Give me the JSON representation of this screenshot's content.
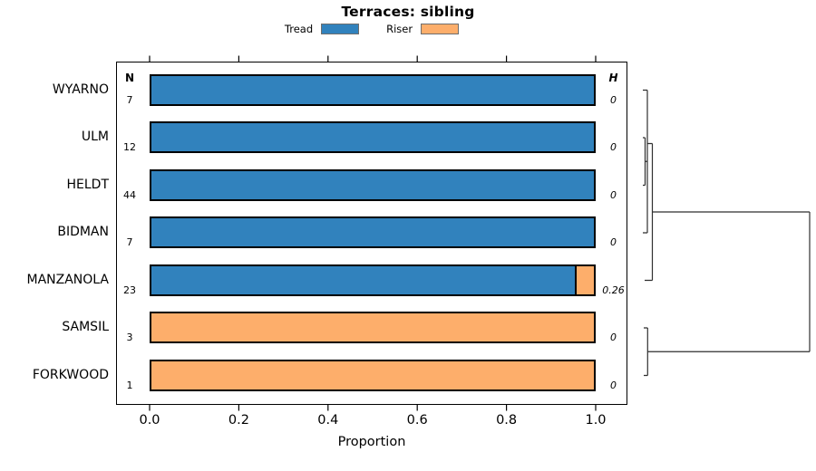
{
  "chart_data": {
    "type": "bar",
    "orientation": "horizontal",
    "stacked": true,
    "title": "Terraces: sibling",
    "xlabel": "Proportion",
    "xlim": [
      0.0,
      1.0
    ],
    "xticks": [
      "0.0",
      "0.2",
      "0.4",
      "0.6",
      "0.8",
      "1.0"
    ],
    "grid": false,
    "legend_position": "top",
    "categories": [
      "WYARNO",
      "ULM",
      "HELDT",
      "BIDMAN",
      "MANZANOLA",
      "SAMSIL",
      "FORKWOOD"
    ],
    "n_column_header": "N",
    "h_column_header": "H",
    "n_values": [
      "7",
      "12",
      "44",
      "7",
      "23",
      "3",
      "1"
    ],
    "h_values": [
      "0",
      "0",
      "0",
      "0",
      "0.26",
      "0",
      "0"
    ],
    "series": [
      {
        "name": "Tread",
        "color": "#3182BD",
        "values": [
          1.0,
          1.0,
          1.0,
          1.0,
          0.9565,
          0.0,
          0.0
        ]
      },
      {
        "name": "Riser",
        "color": "#FDAE6B",
        "values": [
          0.0,
          0.0,
          0.0,
          0.0,
          0.0435,
          1.0,
          1.0
        ]
      }
    ],
    "dendrogram": {
      "side": "right",
      "topology": "(((WYARNO,((ULM,HELDT),BIDMAN)),MANZANOLA),(SAMSIL,FORKWOOD))",
      "line_color": "#2f2f2f"
    }
  }
}
